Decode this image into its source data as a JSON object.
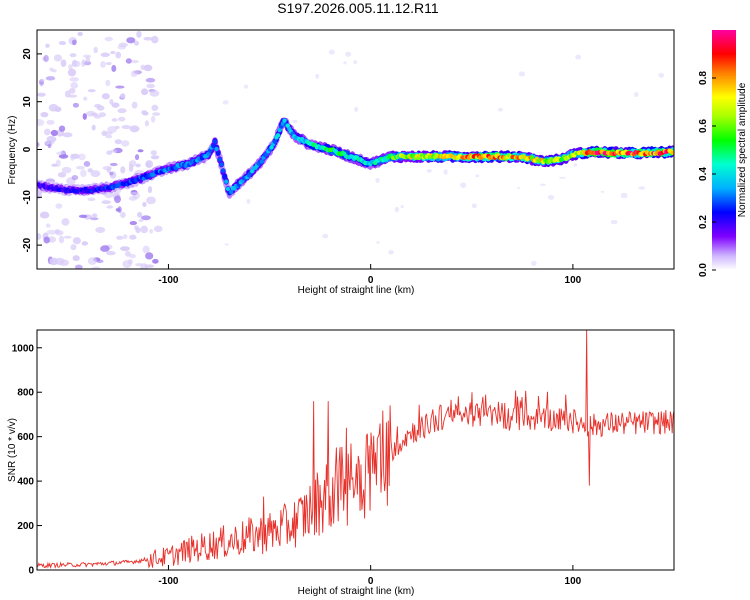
{
  "chart_data": [
    {
      "type": "heatmap",
      "title": "S197.2026.005.11.12.R11",
      "xlabel": "Height of straight line (km)",
      "ylabel": "Frequency (Hz)",
      "xlim": [
        -165,
        150
      ],
      "ylim": [
        -25,
        25
      ],
      "xticks": [
        -100,
        0,
        100
      ],
      "yticks": [
        -20,
        -10,
        0,
        10,
        20
      ],
      "colorbar": {
        "label": "Normalized spectral amplitude",
        "range": [
          0,
          1
        ],
        "ticks": [
          "0.0",
          "0.2",
          "0.4",
          "0.6",
          "0.8"
        ],
        "tick_values": [
          0,
          0.2,
          0.4,
          0.6,
          0.8
        ]
      },
      "ridge": [
        {
          "x": -165,
          "f": -7.5
        },
        {
          "x": -150,
          "f": -8.5
        },
        {
          "x": -140,
          "f": -8.5
        },
        {
          "x": -130,
          "f": -8
        },
        {
          "x": -120,
          "f": -7
        },
        {
          "x": -110,
          "f": -5.5
        },
        {
          "x": -100,
          "f": -4
        },
        {
          "x": -90,
          "f": -3
        },
        {
          "x": -80,
          "f": -1
        },
        {
          "x": -77,
          "f": 1.5
        },
        {
          "x": -70,
          "f": -9
        },
        {
          "x": -62,
          "f": -6
        },
        {
          "x": -55,
          "f": -3
        },
        {
          "x": -48,
          "f": 1
        },
        {
          "x": -43,
          "f": 6
        },
        {
          "x": -38,
          "f": 3
        },
        {
          "x": -30,
          "f": 1
        },
        {
          "x": -20,
          "f": 0
        },
        {
          "x": -10,
          "f": -1.5
        },
        {
          "x": 0,
          "f": -3
        },
        {
          "x": 10,
          "f": -1.5
        },
        {
          "x": 30,
          "f": -1.5
        },
        {
          "x": 60,
          "f": -1.5
        },
        {
          "x": 75,
          "f": -1.5
        },
        {
          "x": 85,
          "f": -2.5
        },
        {
          "x": 95,
          "f": -2
        },
        {
          "x": 100,
          "f": -1
        },
        {
          "x": 110,
          "f": -0.5
        },
        {
          "x": 130,
          "f": -0.8
        },
        {
          "x": 150,
          "f": -0.5
        }
      ],
      "amplitude_profile": [
        {
          "x": -165,
          "a": 0.2
        },
        {
          "x": -120,
          "a": 0.3
        },
        {
          "x": -80,
          "a": 0.35
        },
        {
          "x": -40,
          "a": 0.4
        },
        {
          "x": -20,
          "a": 0.55
        },
        {
          "x": 0,
          "a": 0.45
        },
        {
          "x": 20,
          "a": 0.75
        },
        {
          "x": 60,
          "a": 0.9
        },
        {
          "x": 100,
          "a": 0.7
        },
        {
          "x": 110,
          "a": 1.0
        },
        {
          "x": 150,
          "a": 0.95
        }
      ]
    },
    {
      "type": "line",
      "xlabel": "Height of straight line (km)",
      "ylabel": "SNR (10 * v/v)",
      "xlim": [
        -165,
        150
      ],
      "ylim": [
        0,
        1080
      ],
      "xticks": [
        -100,
        0,
        100
      ],
      "yticks": [
        0,
        200,
        400,
        600,
        800,
        1000
      ],
      "color": "#e8302a",
      "series": [
        {
          "name": "SNR",
          "x": [
            -165,
            -140,
            -120,
            -100,
            -90,
            -80,
            -70,
            -60,
            -50,
            -40,
            -35,
            -30,
            -25,
            -20,
            -15,
            -10,
            -5,
            0,
            10,
            20,
            30,
            40,
            50,
            60,
            70,
            80,
            90,
            100,
            105,
            108,
            110,
            120,
            130,
            140,
            150
          ],
          "values": [
            20,
            25,
            35,
            60,
            90,
            110,
            130,
            150,
            170,
            200,
            230,
            270,
            320,
            360,
            380,
            400,
            430,
            470,
            540,
            620,
            660,
            690,
            700,
            690,
            680,
            680,
            680,
            670,
            660,
            650,
            650,
            660,
            660,
            665,
            665
          ],
          "spikes": [
            {
              "x": -53,
              "value": 330
            },
            {
              "x": -28,
              "value": 760
            },
            {
              "x": -21,
              "value": 760
            },
            {
              "x": -12,
              "value": 640
            },
            {
              "x": 35,
              "value": 740
            },
            {
              "x": 50,
              "value": 800
            },
            {
              "x": 107,
              "value": 1080
            },
            {
              "x": 108,
              "value": 380
            }
          ]
        }
      ]
    }
  ]
}
